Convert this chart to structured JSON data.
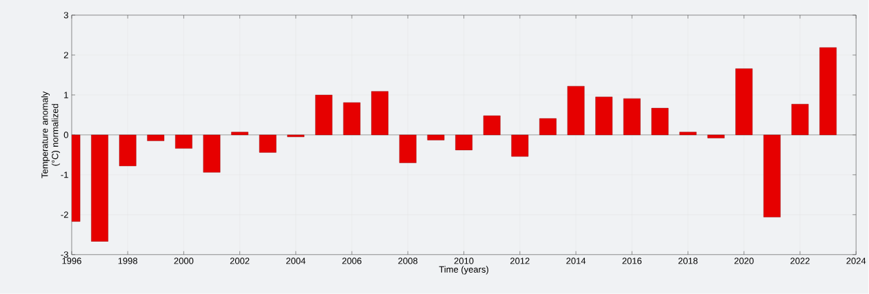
{
  "chart_data": {
    "type": "bar",
    "xlabel": "Time (years)",
    "ylabel": "Temperature anomaly (°C) normalized",
    "x": [
      1996,
      1997,
      1998,
      1999,
      2000,
      2001,
      2002,
      2003,
      2004,
      2005,
      2006,
      2007,
      2008,
      2009,
      2010,
      2011,
      2012,
      2013,
      2014,
      2015,
      2016,
      2017,
      2018,
      2019,
      2020,
      2021,
      2022,
      2023
    ],
    "values": [
      -2.17,
      -2.67,
      -0.78,
      -0.15,
      -0.34,
      -0.94,
      0.07,
      -0.44,
      -0.05,
      1.0,
      0.81,
      1.09,
      -0.7,
      -0.13,
      -0.38,
      0.48,
      -0.54,
      0.41,
      1.22,
      0.95,
      0.91,
      0.67,
      0.07,
      -0.08,
      1.66,
      -2.06,
      0.77,
      2.19
    ],
    "color": "#e60000",
    "xlim": [
      1996,
      2024
    ],
    "xticks": [
      1996,
      1998,
      2000,
      2002,
      2004,
      2006,
      2008,
      2010,
      2012,
      2014,
      2016,
      2018,
      2020,
      2022,
      2024
    ],
    "ylim": [
      -3,
      3
    ],
    "yticks": [
      -3,
      -2,
      -1,
      0,
      1,
      2,
      3
    ],
    "grid": true
  }
}
